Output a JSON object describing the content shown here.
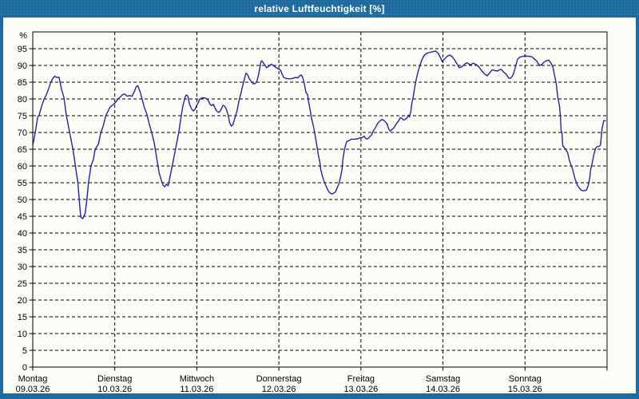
{
  "window": {
    "title": "relative Luftfeuchtigkeit [%]",
    "frame_color": "#1d6a9e",
    "content_background": "#fdfdf8"
  },
  "chart_data": {
    "type": "line",
    "title": "relative Luftfeuchtigkeit [%]",
    "unit_label": "%",
    "ylim": [
      0,
      100
    ],
    "yticks": [
      0,
      5,
      10,
      15,
      20,
      25,
      30,
      35,
      40,
      45,
      50,
      55,
      60,
      65,
      70,
      75,
      80,
      85,
      90,
      95
    ],
    "grid": "dashed",
    "legend_position": "none",
    "line_color": "#2222aa",
    "axis_color": "#000000",
    "x_days": 7,
    "x_labels": [
      {
        "day": "Montag",
        "date": "09.03.26"
      },
      {
        "day": "Dienstag",
        "date": "10.03.26"
      },
      {
        "day": "Mittwoch",
        "date": "11.03.26"
      },
      {
        "day": "Donnerstag",
        "date": "12.03.26"
      },
      {
        "day": "Freitag",
        "date": "13.03.26"
      },
      {
        "day": "Samstag",
        "date": "14.03.26"
      },
      {
        "day": "Sonntag",
        "date": "15.03.26"
      }
    ],
    "series": [
      {
        "name": "relative Luftfeuchtigkeit",
        "x_unit": "days_since_Mon_09.03.26",
        "points": [
          [
            0,
            66
          ],
          [
            0.03,
            70
          ],
          [
            0.06,
            74.5
          ],
          [
            0.08,
            75.3
          ],
          [
            0.11,
            78
          ],
          [
            0.14,
            80
          ],
          [
            0.17,
            81.5
          ],
          [
            0.2,
            83.5
          ],
          [
            0.22,
            85
          ],
          [
            0.25,
            86.3
          ],
          [
            0.27,
            86.8
          ],
          [
            0.29,
            86.4
          ],
          [
            0.32,
            86.5
          ],
          [
            0.35,
            83
          ],
          [
            0.38,
            80.5
          ],
          [
            0.41,
            75
          ],
          [
            0.45,
            70
          ],
          [
            0.49,
            65
          ],
          [
            0.52,
            60
          ],
          [
            0.55,
            55
          ],
          [
            0.58,
            46
          ],
          [
            0.59,
            44.6
          ],
          [
            0.61,
            44.3
          ],
          [
            0.64,
            46
          ],
          [
            0.66,
            50
          ],
          [
            0.68,
            55
          ],
          [
            0.71,
            60
          ],
          [
            0.74,
            62
          ],
          [
            0.76,
            65
          ],
          [
            0.8,
            66.5
          ],
          [
            0.83,
            70
          ],
          [
            0.86,
            72
          ],
          [
            0.89,
            75
          ],
          [
            0.92,
            76.5
          ],
          [
            0.94,
            77.5
          ],
          [
            0.98,
            78.3
          ],
          [
            1.01,
            79
          ],
          [
            1.04,
            80
          ],
          [
            1.06,
            80.4
          ],
          [
            1.09,
            81.2
          ],
          [
            1.12,
            81.5
          ],
          [
            1.15,
            80.8
          ],
          [
            1.18,
            81
          ],
          [
            1.21,
            80.8
          ],
          [
            1.24,
            82.3
          ],
          [
            1.26,
            83.6
          ],
          [
            1.28,
            84
          ],
          [
            1.29,
            83.3
          ],
          [
            1.31,
            82
          ],
          [
            1.33,
            80.2
          ],
          [
            1.36,
            77.5
          ],
          [
            1.39,
            75.5
          ],
          [
            1.42,
            72.5
          ],
          [
            1.45,
            70
          ],
          [
            1.48,
            67
          ],
          [
            1.51,
            62.5
          ],
          [
            1.54,
            58
          ],
          [
            1.57,
            55.5
          ],
          [
            1.59,
            54.2
          ],
          [
            1.61,
            53.8
          ],
          [
            1.63,
            54.6
          ],
          [
            1.65,
            54.1
          ],
          [
            1.66,
            55.2
          ],
          [
            1.7,
            60
          ],
          [
            1.74,
            65
          ],
          [
            1.78,
            70
          ],
          [
            1.81,
            75
          ],
          [
            1.83,
            78
          ],
          [
            1.86,
            80.7
          ],
          [
            1.87,
            81.2
          ],
          [
            1.89,
            80.9
          ],
          [
            1.91,
            78.5
          ],
          [
            1.94,
            76.8
          ],
          [
            1.96,
            76.4
          ],
          [
            1.98,
            77
          ],
          [
            2,
            78.2
          ],
          [
            2.02,
            79
          ],
          [
            2.03,
            79.8
          ],
          [
            2.06,
            80.3
          ],
          [
            2.09,
            80.3
          ],
          [
            2.12,
            80.1
          ],
          [
            2.14,
            79.5
          ],
          [
            2.16,
            78.4
          ],
          [
            2.18,
            78
          ],
          [
            2.2,
            78.4
          ],
          [
            2.23,
            76.8
          ],
          [
            2.25,
            76.2
          ],
          [
            2.27,
            76
          ],
          [
            2.29,
            76.6
          ],
          [
            2.32,
            78.1
          ],
          [
            2.34,
            77.8
          ],
          [
            2.36,
            76.9
          ],
          [
            2.38,
            75.3
          ],
          [
            2.4,
            72.9
          ],
          [
            2.42,
            71.9
          ],
          [
            2.44,
            72.3
          ],
          [
            2.46,
            74
          ],
          [
            2.49,
            76.5
          ],
          [
            2.51,
            79
          ],
          [
            2.53,
            81
          ],
          [
            2.55,
            83
          ],
          [
            2.58,
            86
          ],
          [
            2.6,
            87.7
          ],
          [
            2.62,
            87.2
          ],
          [
            2.64,
            86
          ],
          [
            2.67,
            85
          ],
          [
            2.69,
            84.5
          ],
          [
            2.71,
            84.6
          ],
          [
            2.73,
            85.1
          ],
          [
            2.75,
            87
          ],
          [
            2.77,
            89.5
          ],
          [
            2.78,
            91
          ],
          [
            2.79,
            91.4
          ],
          [
            2.81,
            90.8
          ],
          [
            2.83,
            90.1
          ],
          [
            2.85,
            89.3
          ],
          [
            2.87,
            89.6
          ],
          [
            2.89,
            90.1
          ],
          [
            2.91,
            90.4
          ],
          [
            2.94,
            89.8
          ],
          [
            2.97,
            89.3
          ],
          [
            3,
            88.9
          ],
          [
            3.02,
            88.6
          ],
          [
            3.04,
            87.3
          ],
          [
            3.06,
            86.4
          ],
          [
            3.09,
            86.1
          ],
          [
            3.13,
            86
          ],
          [
            3.16,
            86.1
          ],
          [
            3.2,
            86.4
          ],
          [
            3.23,
            86.3
          ],
          [
            3.25,
            86.8
          ],
          [
            3.27,
            87.2
          ],
          [
            3.29,
            86.5
          ],
          [
            3.31,
            84.5
          ],
          [
            3.33,
            82
          ],
          [
            3.35,
            81.3
          ],
          [
            3.36,
            79.5
          ],
          [
            3.38,
            76.8
          ],
          [
            3.4,
            74
          ],
          [
            3.42,
            72
          ],
          [
            3.44,
            69.5
          ],
          [
            3.46,
            66.5
          ],
          [
            3.48,
            63.5
          ],
          [
            3.5,
            61
          ],
          [
            3.51,
            59
          ],
          [
            3.53,
            57
          ],
          [
            3.55,
            55.5
          ],
          [
            3.57,
            54.3
          ],
          [
            3.59,
            53.2
          ],
          [
            3.61,
            52.3
          ],
          [
            3.63,
            51.8
          ],
          [
            3.65,
            51.7
          ],
          [
            3.67,
            51.9
          ],
          [
            3.69,
            52.3
          ],
          [
            3.71,
            53.5
          ],
          [
            3.73,
            54.5
          ],
          [
            3.75,
            56.5
          ],
          [
            3.77,
            59
          ],
          [
            3.78,
            62
          ],
          [
            3.8,
            65
          ],
          [
            3.82,
            66.8
          ],
          [
            3.83,
            67.4
          ],
          [
            3.86,
            67.6
          ],
          [
            3.88,
            68
          ],
          [
            3.92,
            68
          ],
          [
            3.96,
            68.1
          ],
          [
            3.99,
            68.4
          ],
          [
            4.02,
            68.5
          ],
          [
            4.04,
            68.9
          ],
          [
            4.06,
            68.2
          ],
          [
            4.08,
            68.1
          ],
          [
            4.1,
            68.5
          ],
          [
            4.13,
            69.3
          ],
          [
            4.15,
            70.4
          ],
          [
            4.18,
            71.6
          ],
          [
            4.21,
            72.9
          ],
          [
            4.24,
            73.6
          ],
          [
            4.26,
            73.9
          ],
          [
            4.29,
            73.4
          ],
          [
            4.32,
            72.5
          ],
          [
            4.34,
            70.9
          ],
          [
            4.36,
            70.4
          ],
          [
            4.38,
            70.9
          ],
          [
            4.4,
            71.3
          ],
          [
            4.43,
            72.5
          ],
          [
            4.46,
            73.5
          ],
          [
            4.48,
            74.4
          ],
          [
            4.5,
            74.2
          ],
          [
            4.52,
            73.7
          ],
          [
            4.54,
            73.9
          ],
          [
            4.56,
            74.3
          ],
          [
            4.58,
            75.2
          ],
          [
            4.59,
            74.6
          ],
          [
            4.61,
            76.5
          ],
          [
            4.62,
            78.5
          ],
          [
            4.64,
            81
          ],
          [
            4.66,
            84
          ],
          [
            4.68,
            86.5
          ],
          [
            4.7,
            88.5
          ],
          [
            4.72,
            90
          ],
          [
            4.74,
            91.5
          ],
          [
            4.77,
            93
          ],
          [
            4.8,
            93.6
          ],
          [
            4.83,
            93.8
          ],
          [
            4.86,
            94
          ],
          [
            4.89,
            94.2
          ],
          [
            4.91,
            94.3
          ],
          [
            4.94,
            93.7
          ],
          [
            4.97,
            92.3
          ],
          [
            4.99,
            91.2
          ],
          [
            5.02,
            91.9
          ],
          [
            5.05,
            92.7
          ],
          [
            5.08,
            93.1
          ],
          [
            5.11,
            92.7
          ],
          [
            5.14,
            91.7
          ],
          [
            5.17,
            90.5
          ],
          [
            5.2,
            89.3
          ],
          [
            5.23,
            89.6
          ],
          [
            5.26,
            90.3
          ],
          [
            5.29,
            90.8
          ],
          [
            5.32,
            90.4
          ],
          [
            5.34,
            90.2
          ],
          [
            5.37,
            90.7
          ],
          [
            5.4,
            90.3
          ],
          [
            5.43,
            89.8
          ],
          [
            5.46,
            88.8
          ],
          [
            5.5,
            87.6
          ],
          [
            5.54,
            86.9
          ],
          [
            5.57,
            87.8
          ],
          [
            5.6,
            88.7
          ],
          [
            5.63,
            88.5
          ],
          [
            5.66,
            88.3
          ],
          [
            5.69,
            88.7
          ],
          [
            5.71,
            88.8
          ],
          [
            5.74,
            88
          ],
          [
            5.77,
            87.4
          ],
          [
            5.8,
            86.3
          ],
          [
            5.82,
            86.1
          ],
          [
            5.84,
            86.6
          ],
          [
            5.86,
            87.5
          ],
          [
            5.89,
            90.2
          ],
          [
            5.91,
            91.9
          ],
          [
            5.94,
            92.5
          ],
          [
            5.97,
            92.7
          ],
          [
            6,
            92.8
          ],
          [
            6.06,
            92.7
          ],
          [
            6.09,
            92.5
          ],
          [
            6.11,
            92
          ],
          [
            6.14,
            91.4
          ],
          [
            6.16,
            90.6
          ],
          [
            6.18,
            90
          ],
          [
            6.2,
            90.2
          ],
          [
            6.23,
            90.9
          ],
          [
            6.26,
            91.4
          ],
          [
            6.29,
            91.6
          ],
          [
            6.32,
            90.5
          ],
          [
            6.34,
            89.5
          ],
          [
            6.36,
            87
          ],
          [
            6.38,
            84.7
          ],
          [
            6.4,
            80.4
          ],
          [
            6.42,
            78
          ],
          [
            6.43,
            75.2
          ],
          [
            6.44,
            70.5
          ],
          [
            6.45,
            70
          ],
          [
            6.46,
            66
          ],
          [
            6.48,
            65.5
          ],
          [
            6.5,
            64.8
          ],
          [
            6.52,
            64
          ],
          [
            6.54,
            61.7
          ],
          [
            6.56,
            60.3
          ],
          [
            6.58,
            59
          ],
          [
            6.61,
            56.2
          ],
          [
            6.64,
            54.2
          ],
          [
            6.67,
            53.2
          ],
          [
            6.69,
            52.7
          ],
          [
            6.72,
            52.6
          ],
          [
            6.75,
            52.8
          ],
          [
            6.77,
            54.2
          ],
          [
            6.79,
            56.5
          ],
          [
            6.8,
            59
          ],
          [
            6.82,
            61
          ],
          [
            6.84,
            63.5
          ],
          [
            6.86,
            65.3
          ],
          [
            6.88,
            65.8
          ],
          [
            6.9,
            65.8
          ],
          [
            6.92,
            66.2
          ],
          [
            6.93,
            68.9
          ],
          [
            6.94,
            71.2
          ],
          [
            6.95,
            72.4
          ],
          [
            6.96,
            73.5
          ],
          [
            6.98,
            73.5
          ]
        ]
      }
    ]
  }
}
